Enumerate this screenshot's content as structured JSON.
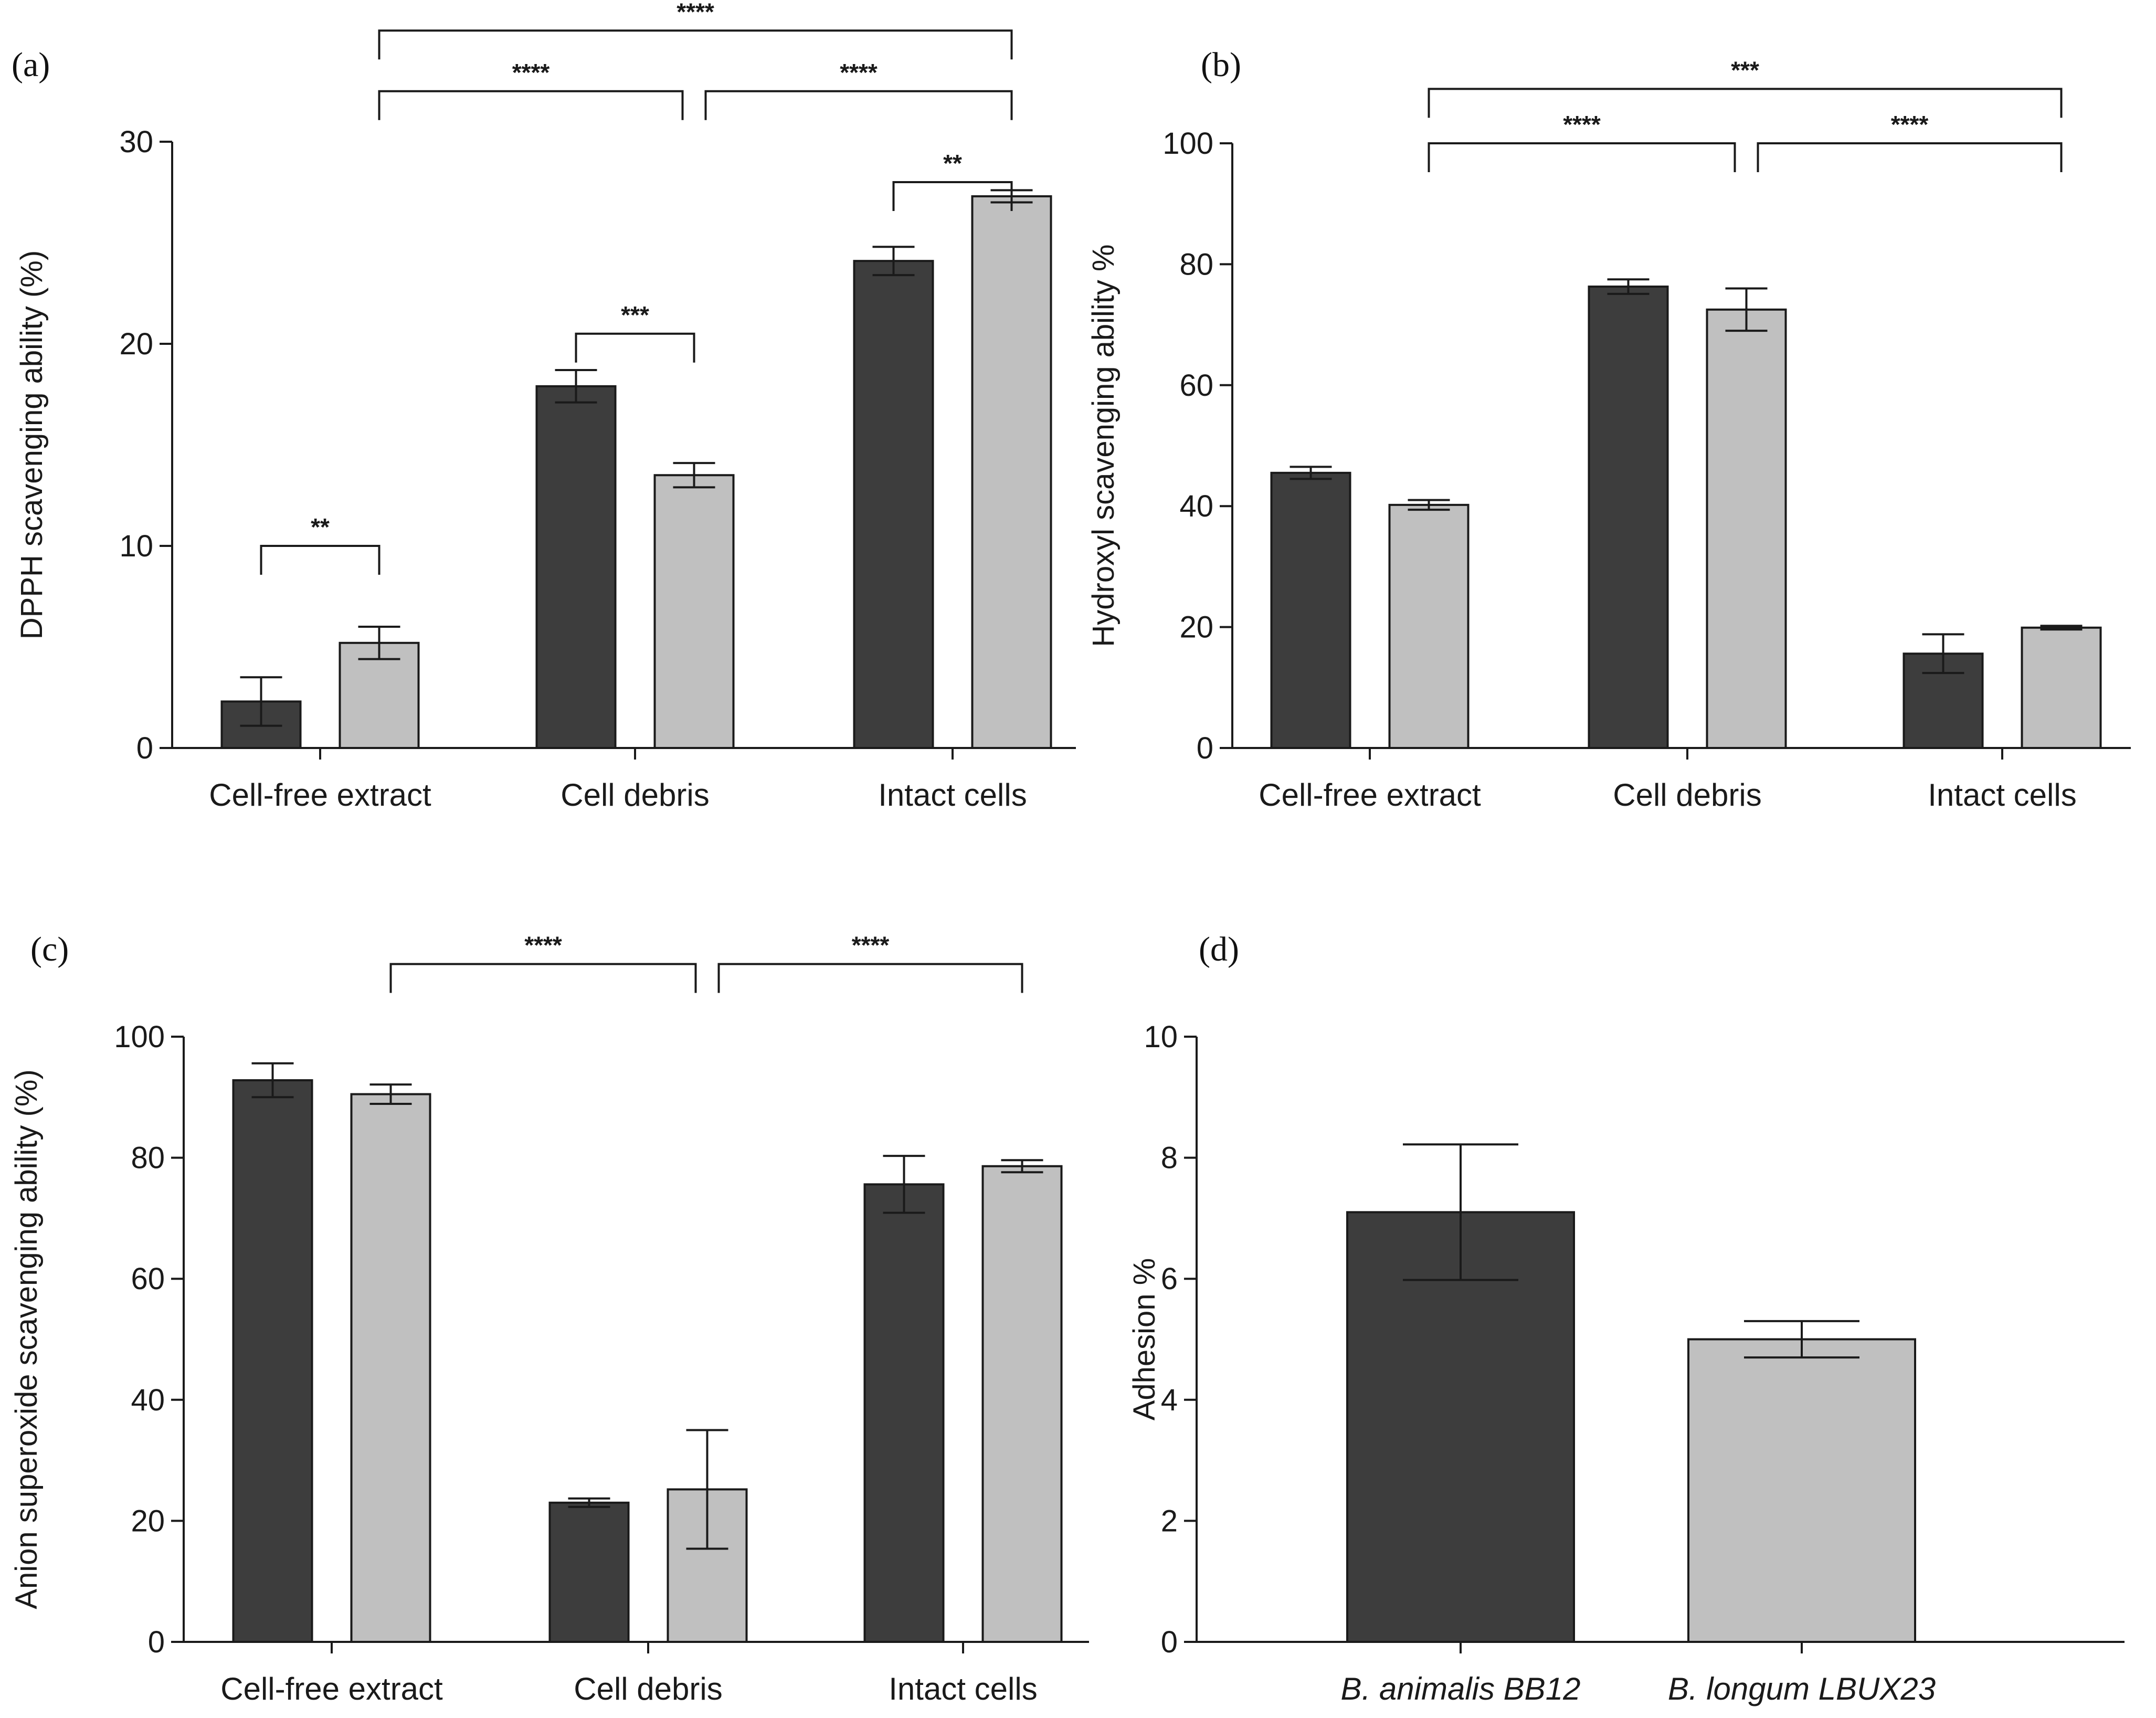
{
  "colors": {
    "bb12": "#3d3d3d",
    "lbux23": "#c0c0c0"
  },
  "chart_data": [
    {
      "type": "bar",
      "panel": "(a)",
      "ylabel": "DPPH scavenging ability (%)",
      "ylim": [
        0,
        30
      ],
      "yticks": [
        0,
        10,
        20,
        30
      ],
      "categories": [
        "Cell-free extract",
        "Cell debris",
        "Intact cells"
      ],
      "series": [
        {
          "name": "B. animalis BB12",
          "color": "#3d3d3d",
          "values": [
            2.3,
            17.9,
            24.1
          ],
          "errors": [
            1.2,
            0.8,
            0.7
          ]
        },
        {
          "name": "B. longum LBUX23",
          "color": "#c0c0c0",
          "values": [
            5.2,
            13.5,
            27.3
          ],
          "errors": [
            0.8,
            0.6,
            0.3
          ]
        }
      ],
      "comparisons": [
        {
          "from": [
            0,
            0
          ],
          "to": [
            0,
            1
          ],
          "label": "**",
          "level": 10.0
        },
        {
          "from": [
            1,
            0
          ],
          "to": [
            1,
            1
          ],
          "label": "***",
          "level": 20.5
        },
        {
          "from": [
            2,
            0
          ],
          "to": [
            2,
            1
          ],
          "label": "**",
          "level": 28.0
        },
        {
          "from": [
            0,
            1
          ],
          "to": [
            1,
            1
          ],
          "label": "****",
          "level": 32.5
        },
        {
          "from": [
            1,
            1
          ],
          "to": [
            2,
            1
          ],
          "label": "****",
          "level": 32.5
        },
        {
          "from": [
            0,
            1
          ],
          "to": [
            2,
            1
          ],
          "label": "****",
          "level": 35.5
        }
      ]
    },
    {
      "type": "bar",
      "panel": "(b)",
      "ylabel": "Hydroxyl scavenging ability %",
      "ylim": [
        0,
        100
      ],
      "yticks": [
        0,
        20,
        40,
        60,
        80,
        100
      ],
      "categories": [
        "Cell-free extract",
        "Cell debris",
        "Intact cells"
      ],
      "series": [
        {
          "name": "B. animalis BB12",
          "color": "#3d3d3d",
          "values": [
            45.5,
            76.3,
            15.6
          ],
          "errors": [
            1.0,
            1.2,
            3.2
          ]
        },
        {
          "name": "B. longum LBUX23",
          "color": "#c0c0c0",
          "values": [
            40.2,
            72.5,
            19.9
          ],
          "errors": [
            0.8,
            3.5,
            0.3
          ]
        }
      ],
      "comparisons": [
        {
          "from": [
            0,
            1
          ],
          "to": [
            1,
            1
          ],
          "label": "****",
          "level": 100.0
        },
        {
          "from": [
            1,
            1
          ],
          "to": [
            2,
            1
          ],
          "label": "****",
          "level": 100.0
        },
        {
          "from": [
            0,
            1
          ],
          "to": [
            2,
            1
          ],
          "label": "***",
          "level": 109.0
        }
      ]
    },
    {
      "type": "bar",
      "panel": "(c)",
      "ylabel": "Anion superoxide scavenging ability (%)",
      "ylim": [
        0,
        100
      ],
      "yticks": [
        0,
        20,
        40,
        60,
        80,
        100
      ],
      "categories": [
        "Cell-free extract",
        "Cell debris",
        "Intact cells"
      ],
      "series": [
        {
          "name": "B. animalis BB12",
          "color": "#3d3d3d",
          "values": [
            92.8,
            23.0,
            75.6
          ],
          "errors": [
            2.8,
            0.7,
            4.7
          ]
        },
        {
          "name": "B. longum LBUX23",
          "color": "#c0c0c0",
          "values": [
            90.5,
            25.2,
            78.6
          ],
          "errors": [
            1.6,
            9.8,
            1.0
          ]
        }
      ],
      "comparisons": [
        {
          "from": [
            0,
            1
          ],
          "to": [
            1,
            1
          ],
          "label": "****",
          "level": 112.0
        },
        {
          "from": [
            1,
            1
          ],
          "to": [
            2,
            1
          ],
          "label": "****",
          "level": 112.0
        }
      ]
    },
    {
      "type": "bar",
      "panel": "(d)",
      "ylabel": "Adhesion %",
      "ylim": [
        0,
        10
      ],
      "yticks": [
        0,
        2,
        4,
        6,
        8,
        10
      ],
      "categories": [
        "B. animalis BB12",
        "B. longum LBUX23"
      ],
      "italic_categories": true,
      "values": [
        7.1,
        5.0
      ],
      "errors": [
        1.12,
        0.3
      ],
      "colors": [
        "#3d3d3d",
        "#c0c0c0"
      ],
      "comparisons": []
    }
  ]
}
